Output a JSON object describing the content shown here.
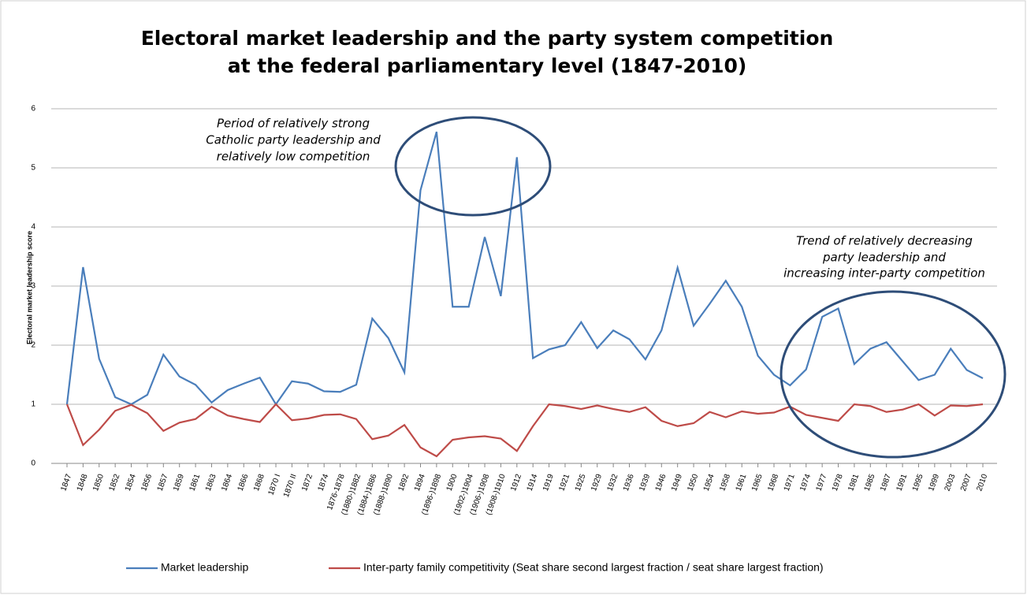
{
  "chart_data": {
    "type": "line",
    "title": [
      "Electoral market leadership and the party system competition",
      "at the federal parliamentary level (1847-2010)"
    ],
    "y_label": "Electoral market leadership score",
    "categories": [
      "1847",
      "1848",
      "1850",
      "1852",
      "1854",
      "1856",
      "1857",
      "1859",
      "1861",
      "1863",
      "1864",
      "1866",
      "1868",
      "1870 I",
      "1870 II",
      "1872",
      "1874",
      "1876-1878",
      "(1880-)1882",
      "(1884-)1886",
      "(1888-)1890",
      "1892",
      "1894",
      "(1896-)1898",
      "1900",
      "(1902-)1904",
      "(1906-)1908",
      "(1908-)1910",
      "1912",
      "1914",
      "1919",
      "1921",
      "1925",
      "1929",
      "1932",
      "1936",
      "1939",
      "1946",
      "1949",
      "1950",
      "1954",
      "1958",
      "1961",
      "1965",
      "1968",
      "1971",
      "1974",
      "1977",
      "1978",
      "1981",
      "1985",
      "1987",
      "1991",
      "1995",
      "1999",
      "2003",
      "2007",
      "2010"
    ],
    "series": [
      {
        "name": "Market leadership",
        "color": "#4a7ebb",
        "values": [
          1.0,
          3.32,
          1.77,
          1.12,
          1.0,
          1.16,
          1.84,
          1.47,
          1.33,
          1.03,
          1.24,
          1.35,
          1.45,
          1.0,
          1.39,
          1.35,
          1.22,
          1.21,
          1.33,
          2.45,
          2.12,
          1.54,
          4.62,
          5.61,
          2.65,
          2.65,
          3.83,
          2.83,
          5.18,
          1.78,
          1.93,
          2.0,
          2.39,
          1.95,
          2.25,
          2.1,
          1.76,
          2.25,
          3.31,
          2.33,
          2.7,
          3.09,
          2.65,
          1.82,
          1.5,
          1.32,
          1.59,
          2.48,
          2.62,
          1.68,
          1.94,
          2.05,
          1.73,
          1.41,
          1.5,
          1.94,
          1.58,
          1.44
        ]
      },
      {
        "name": "Inter-party family competitivity (Seat share second largest fraction / seat share largest fraction)",
        "color": "#be4b48",
        "values": [
          1.0,
          0.31,
          0.57,
          0.89,
          0.99,
          0.85,
          0.55,
          0.69,
          0.75,
          0.96,
          0.81,
          0.75,
          0.7,
          1.0,
          0.73,
          0.76,
          0.82,
          0.83,
          0.75,
          0.41,
          0.47,
          0.65,
          0.27,
          0.12,
          0.4,
          0.44,
          0.46,
          0.42,
          0.21,
          0.63,
          1.0,
          0.97,
          0.92,
          0.98,
          0.92,
          0.87,
          0.95,
          0.72,
          0.63,
          0.68,
          0.87,
          0.78,
          0.88,
          0.84,
          0.86,
          0.96,
          0.82,
          0.77,
          0.72,
          1.0,
          0.97,
          0.87,
          0.91,
          1.0,
          0.81,
          0.98,
          0.97,
          1.0
        ]
      }
    ],
    "ylim": [
      0,
      6
    ],
    "yticks": [
      0,
      1,
      2,
      3,
      4,
      5,
      6
    ],
    "grid": true,
    "annotations": [
      [
        "Period of relatively strong",
        "Catholic party leadership and",
        "relatively low competition"
      ],
      [
        "Trend of relatively decreasing",
        "party leadership and",
        "increasing inter-party competition"
      ]
    ],
    "legend": "bottom"
  }
}
